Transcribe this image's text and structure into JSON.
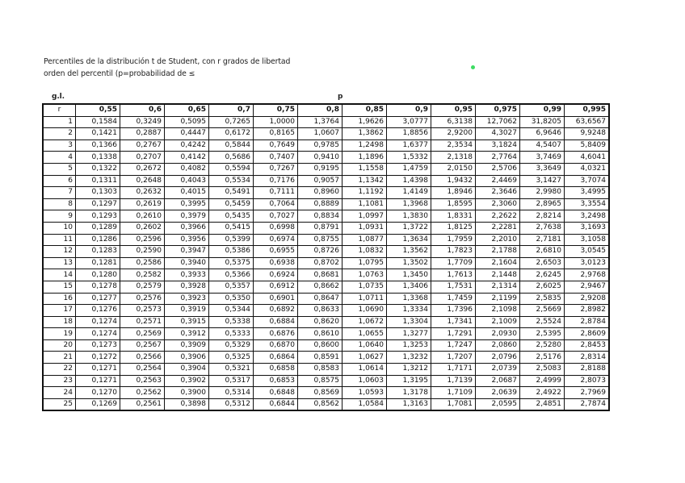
{
  "title_line1": "Percentiles  de la distribución t de Student, con r grados de libertad",
  "title_line2": "orden del percentil (p=probabilidad de ≤",
  "gl_label": "g.l.",
  "p_label": "p",
  "r_header": "r",
  "p_values": [
    "0,55",
    "0,6",
    "0,65",
    "0,7",
    "0,75",
    "0,8",
    "0,85",
    "0,9",
    "0,95",
    "0,975",
    "0,99",
    "0,995"
  ],
  "rows": [
    [
      "1",
      "0,1584",
      "0,3249",
      "0,5095",
      "0,7265",
      "1,0000",
      "1,3764",
      "1,9626",
      "3,0777",
      "6,3138",
      "12,7062",
      "31,8205",
      "63,6567"
    ],
    [
      "2",
      "0,1421",
      "0,2887",
      "0,4447",
      "0,6172",
      "0,8165",
      "1,0607",
      "1,3862",
      "1,8856",
      "2,9200",
      "4,3027",
      "6,9646",
      "9,9248"
    ],
    [
      "3",
      "0,1366",
      "0,2767",
      "0,4242",
      "0,5844",
      "0,7649",
      "0,9785",
      "1,2498",
      "1,6377",
      "2,3534",
      "3,1824",
      "4,5407",
      "5,8409"
    ],
    [
      "4",
      "0,1338",
      "0,2707",
      "0,4142",
      "0,5686",
      "0,7407",
      "0,9410",
      "1,1896",
      "1,5332",
      "2,1318",
      "2,7764",
      "3,7469",
      "4,6041"
    ],
    [
      "5",
      "0,1322",
      "0,2672",
      "0,4082",
      "0,5594",
      "0,7267",
      "0,9195",
      "1,1558",
      "1,4759",
      "2,0150",
      "2,5706",
      "3,3649",
      "4,0321"
    ],
    [
      "6",
      "0,1311",
      "0,2648",
      "0,4043",
      "0,5534",
      "0,7176",
      "0,9057",
      "1,1342",
      "1,4398",
      "1,9432",
      "2,4469",
      "3,1427",
      "3,7074"
    ],
    [
      "7",
      "0,1303",
      "0,2632",
      "0,4015",
      "0,5491",
      "0,7111",
      "0,8960",
      "1,1192",
      "1,4149",
      "1,8946",
      "2,3646",
      "2,9980",
      "3,4995"
    ],
    [
      "8",
      "0,1297",
      "0,2619",
      "0,3995",
      "0,5459",
      "0,7064",
      "0,8889",
      "1,1081",
      "1,3968",
      "1,8595",
      "2,3060",
      "2,8965",
      "3,3554"
    ],
    [
      "9",
      "0,1293",
      "0,2610",
      "0,3979",
      "0,5435",
      "0,7027",
      "0,8834",
      "1,0997",
      "1,3830",
      "1,8331",
      "2,2622",
      "2,8214",
      "3,2498"
    ],
    [
      "10",
      "0,1289",
      "0,2602",
      "0,3966",
      "0,5415",
      "0,6998",
      "0,8791",
      "1,0931",
      "1,3722",
      "1,8125",
      "2,2281",
      "2,7638",
      "3,1693"
    ],
    [
      "11",
      "0,1286",
      "0,2596",
      "0,3956",
      "0,5399",
      "0,6974",
      "0,8755",
      "1,0877",
      "1,3634",
      "1,7959",
      "2,2010",
      "2,7181",
      "3,1058"
    ],
    [
      "12",
      "0,1283",
      "0,2590",
      "0,3947",
      "0,5386",
      "0,6955",
      "0,8726",
      "1,0832",
      "1,3562",
      "1,7823",
      "2,1788",
      "2,6810",
      "3,0545"
    ],
    [
      "13",
      "0,1281",
      "0,2586",
      "0,3940",
      "0,5375",
      "0,6938",
      "0,8702",
      "1,0795",
      "1,3502",
      "1,7709",
      "2,1604",
      "2,6503",
      "3,0123"
    ],
    [
      "14",
      "0,1280",
      "0,2582",
      "0,3933",
      "0,5366",
      "0,6924",
      "0,8681",
      "1,0763",
      "1,3450",
      "1,7613",
      "2,1448",
      "2,6245",
      "2,9768"
    ],
    [
      "15",
      "0,1278",
      "0,2579",
      "0,3928",
      "0,5357",
      "0,6912",
      "0,8662",
      "1,0735",
      "1,3406",
      "1,7531",
      "2,1314",
      "2,6025",
      "2,9467"
    ],
    [
      "16",
      "0,1277",
      "0,2576",
      "0,3923",
      "0,5350",
      "0,6901",
      "0,8647",
      "1,0711",
      "1,3368",
      "1,7459",
      "2,1199",
      "2,5835",
      "2,9208"
    ],
    [
      "17",
      "0,1276",
      "0,2573",
      "0,3919",
      "0,5344",
      "0,6892",
      "0,8633",
      "1,0690",
      "1,3334",
      "1,7396",
      "2,1098",
      "2,5669",
      "2,8982"
    ],
    [
      "18",
      "0,1274",
      "0,2571",
      "0,3915",
      "0,5338",
      "0,6884",
      "0,8620",
      "1,0672",
      "1,3304",
      "1,7341",
      "2,1009",
      "2,5524",
      "2,8784"
    ],
    [
      "19",
      "0,1274",
      "0,2569",
      "0,3912",
      "0,5333",
      "0,6876",
      "0,8610",
      "1,0655",
      "1,3277",
      "1,7291",
      "2,0930",
      "2,5395",
      "2,8609"
    ],
    [
      "20",
      "0,1273",
      "0,2567",
      "0,3909",
      "0,5329",
      "0,6870",
      "0,8600",
      "1,0640",
      "1,3253",
      "1,7247",
      "2,0860",
      "2,5280",
      "2,8453"
    ],
    [
      "21",
      "0,1272",
      "0,2566",
      "0,3906",
      "0,5325",
      "0,6864",
      "0,8591",
      "1,0627",
      "1,3232",
      "1,7207",
      "2,0796",
      "2,5176",
      "2,8314"
    ],
    [
      "22",
      "0,1271",
      "0,2564",
      "0,3904",
      "0,5321",
      "0,6858",
      "0,8583",
      "1,0614",
      "1,3212",
      "1,7171",
      "2,0739",
      "2,5083",
      "2,8188"
    ],
    [
      "23",
      "0,1271",
      "0,2563",
      "0,3902",
      "0,5317",
      "0,6853",
      "0,8575",
      "1,0603",
      "1,3195",
      "1,7139",
      "2,0687",
      "2,4999",
      "2,8073"
    ],
    [
      "24",
      "0,1270",
      "0,2562",
      "0,3900",
      "0,5314",
      "0,6848",
      "0,8569",
      "1,0593",
      "1,3178",
      "1,7109",
      "2,0639",
      "2,4922",
      "2,7969"
    ],
    [
      "25",
      "0,1269",
      "0,2561",
      "0,3898",
      "0,5312",
      "0,6844",
      "0,8562",
      "1,0584",
      "1,3163",
      "1,7081",
      "2,0595",
      "2,4851",
      "2,7874"
    ]
  ],
  "colors": {
    "dot": "#3ddc63"
  }
}
